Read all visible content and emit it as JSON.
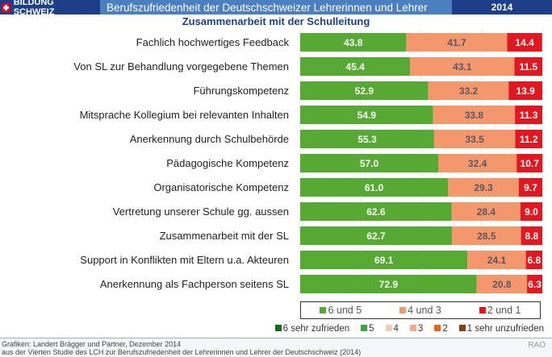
{
  "header": {
    "brand": "BILDUNG SCHWEIZ",
    "title": "Berufszufriedenheit der Deutschschweizer Lehrerinnen und Lehrer",
    "year": "2014"
  },
  "chart_data": {
    "type": "bar",
    "stacked": true,
    "orientation": "horizontal",
    "title": "Zusammenarbeit mit der Schulleitung",
    "categories": [
      "Fachlich hochwertiges Feedback",
      "Von SL zur Behandlung vorgegebene Themen",
      "Führungskompetenz",
      "Mitsprache Kollegium bei relevanten Inhalten",
      "Anerkennung durch Schulbehörde",
      "Pädagogische Kompetenz",
      "Organisatorische Kompetenz",
      "Vertretung unserer Schule gg. aussen",
      "Zusammenarbeit mit der SL",
      "Support in Konflikten mit Eltern u.a. Akteuren",
      "Anerkennung als Fachperson seitens SL"
    ],
    "series": [
      {
        "name": "6 und 5",
        "color": "#56aa34",
        "label_color": "#ffffff",
        "values": [
          43.8,
          45.4,
          52.9,
          54.9,
          55.3,
          57.0,
          61.0,
          62.6,
          62.7,
          69.1,
          72.9
        ]
      },
      {
        "name": "4 und 3",
        "color": "#f5976c",
        "label_color": "#555a66",
        "values": [
          41.7,
          43.1,
          33.2,
          33.8,
          33.5,
          32.4,
          29.3,
          28.4,
          28.5,
          24.1,
          20.8
        ]
      },
      {
        "name": "2 und 1",
        "color": "#e3171f",
        "label_color": "#ffffff",
        "values": [
          14.4,
          11.5,
          13.9,
          11.3,
          11.2,
          10.7,
          9.7,
          9.0,
          8.8,
          6.8,
          6.3
        ]
      }
    ],
    "xlim": [
      0,
      100
    ],
    "legend": "bottom"
  },
  "legend2": [
    {
      "label": "6 sehr zufrieden",
      "color": "#0f6e12"
    },
    {
      "label": "5",
      "color": "#3aa53a"
    },
    {
      "label": "4",
      "color": "#f7c9b3"
    },
    {
      "label": "3",
      "color": "#f3a98a"
    },
    {
      "label": "2",
      "color": "#e8651a"
    },
    {
      "label": "1 sehr unzufrieden",
      "color": "#8c3b10"
    }
  ],
  "footer": {
    "line1": "Grafiken:  Landert Brägger und Partner, Dezember 2014",
    "line2": "aus der Vierten Studie des LCH zur Berufszufriedenheit der Lehrerinnen und Lehrer der Deutschschweiz (2014)",
    "rao": "RAO"
  }
}
